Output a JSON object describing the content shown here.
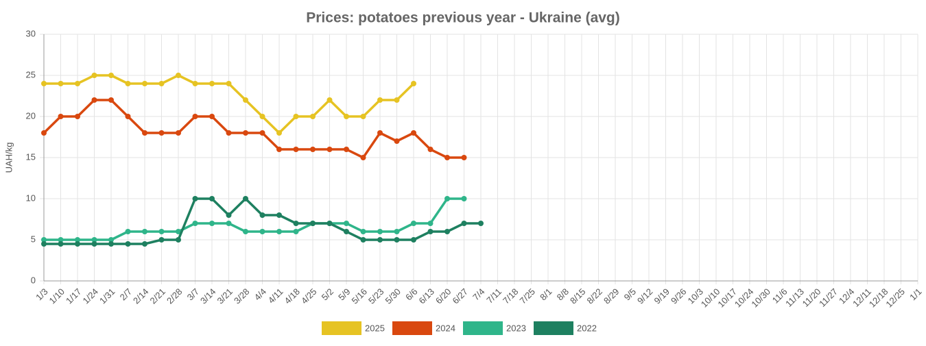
{
  "chart_data": {
    "type": "line",
    "title": "Prices: potatoes previous year - Ukraine (avg)",
    "y_label": "UAH/kg",
    "categories": [
      "1/3",
      "1/10",
      "1/17",
      "1/24",
      "1/31",
      "2/7",
      "2/14",
      "2/21",
      "2/28",
      "3/7",
      "3/14",
      "3/21",
      "3/28",
      "4/4",
      "4/11",
      "4/18",
      "4/25",
      "5/2",
      "5/9",
      "5/16",
      "5/23",
      "5/30",
      "6/6",
      "6/13",
      "6/20",
      "6/27",
      "7/4",
      "7/11",
      "7/18",
      "7/25",
      "8/1",
      "8/8",
      "8/15",
      "8/22",
      "8/29",
      "9/5",
      "9/12",
      "9/19",
      "9/26",
      "10/3",
      "10/10",
      "10/17",
      "10/24",
      "10/30",
      "11/6",
      "11/13",
      "11/20",
      "11/27",
      "12/4",
      "12/11",
      "12/18",
      "12/25",
      "1/1"
    ],
    "series": [
      {
        "name": "2025",
        "color": "#e6c323",
        "values": [
          24,
          24,
          24,
          25,
          25,
          24,
          24,
          24,
          25,
          24,
          24,
          24,
          22,
          20,
          18,
          20,
          20,
          22,
          20,
          20,
          22,
          22,
          24,
          null,
          null,
          null,
          null,
          null,
          null,
          null,
          null,
          null,
          null,
          null,
          null,
          null,
          null,
          null,
          null,
          null,
          null,
          null,
          null,
          null,
          null,
          null,
          null,
          null,
          null,
          null,
          null,
          null,
          null
        ]
      },
      {
        "name": "2024",
        "color": "#d9480f",
        "values": [
          18,
          20,
          20,
          22,
          22,
          20,
          18,
          18,
          18,
          20,
          20,
          18,
          18,
          18,
          16,
          16,
          16,
          16,
          16,
          15,
          18,
          17,
          18,
          16,
          15,
          15,
          null,
          null,
          null,
          null,
          null,
          null,
          null,
          null,
          null,
          null,
          null,
          null,
          null,
          null,
          null,
          null,
          null,
          null,
          null,
          null,
          null,
          null,
          null,
          null,
          null,
          null,
          null
        ]
      },
      {
        "name": "2023",
        "color": "#2fb58a",
        "values": [
          5,
          5,
          5,
          5,
          5,
          6,
          6,
          6,
          6,
          7,
          7,
          7,
          6,
          6,
          6,
          6,
          7,
          7,
          7,
          6,
          6,
          6,
          7,
          7,
          10,
          10,
          null,
          null,
          null,
          null,
          null,
          null,
          null,
          null,
          null,
          null,
          null,
          null,
          null,
          null,
          null,
          null,
          null,
          null,
          null,
          null,
          null,
          null,
          null,
          null,
          null,
          null,
          null
        ]
      },
      {
        "name": "2022",
        "color": "#1e8060",
        "values": [
          4.5,
          4.5,
          4.5,
          4.5,
          4.5,
          4.5,
          4.5,
          5,
          5,
          10,
          10,
          8,
          10,
          8,
          8,
          7,
          7,
          7,
          6,
          5,
          5,
          5,
          5,
          6,
          6,
          7,
          7,
          null,
          null,
          null,
          null,
          null,
          null,
          null,
          null,
          null,
          null,
          null,
          null,
          null,
          null,
          null,
          null,
          null,
          null,
          null,
          null,
          null,
          null,
          null,
          null,
          null,
          null
        ]
      }
    ],
    "ylim": [
      0,
      30
    ],
    "yticks": [
      0,
      5,
      10,
      15,
      20,
      25,
      30
    ],
    "grid": true,
    "legend": "bottom"
  }
}
